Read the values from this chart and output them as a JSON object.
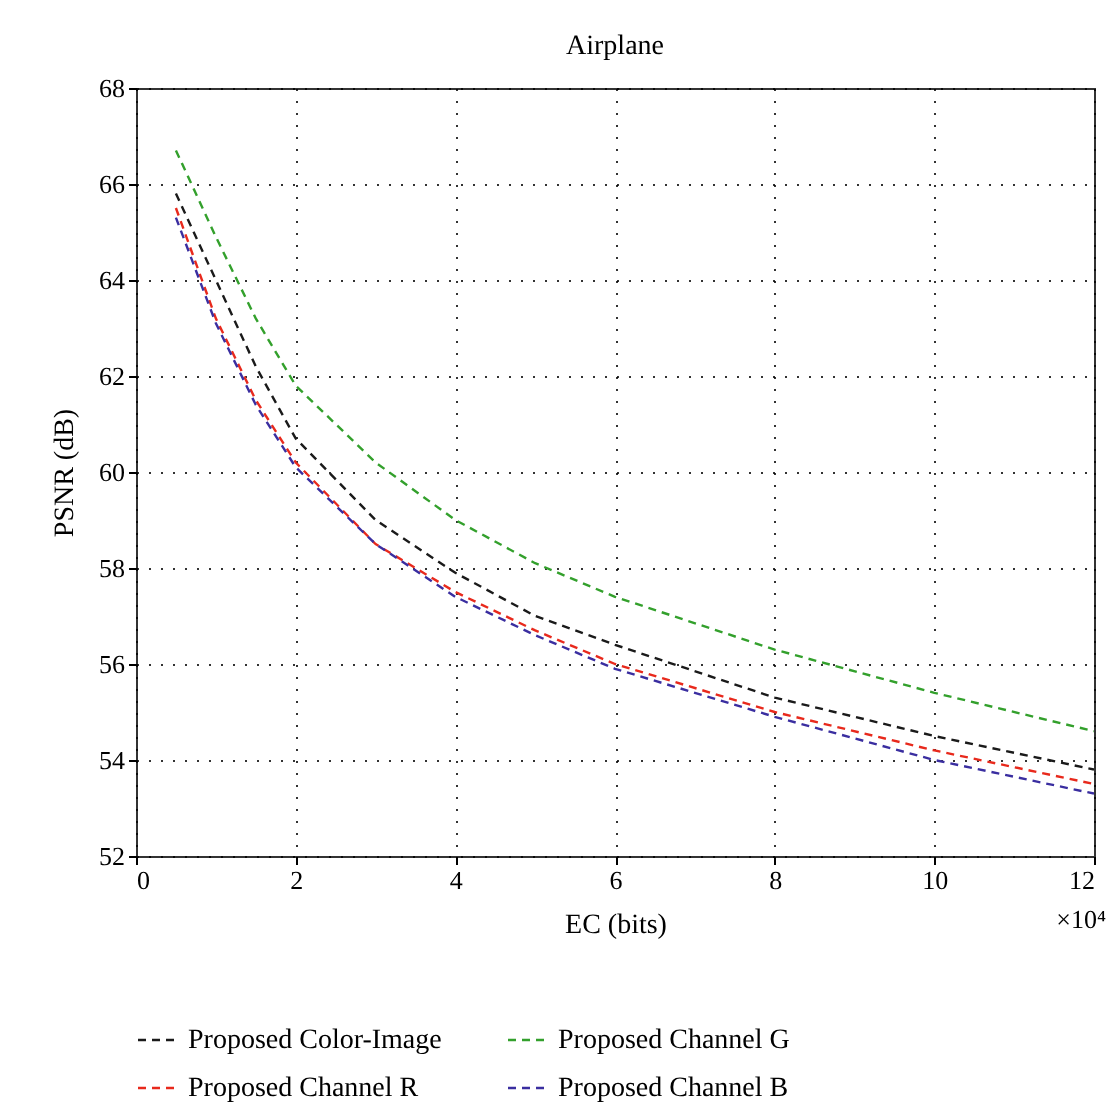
{
  "chart_data": {
    "type": "line",
    "title": "Airplane",
    "xlabel": "EC (bits)",
    "ylabel": "PSNR (dB)",
    "x": [
      0.5,
      1,
      1.5,
      2,
      3,
      4,
      5,
      6,
      8,
      10,
      12
    ],
    "series": [
      {
        "name": "Proposed Color-Image",
        "color": "#1a1a1a",
        "values": [
          65.8,
          64.0,
          62.2,
          60.7,
          59.0,
          57.9,
          57.0,
          56.4,
          55.3,
          54.5,
          53.8
        ]
      },
      {
        "name": "Proposed Channel G",
        "color": "#33a02c",
        "values": [
          66.7,
          64.9,
          63.2,
          61.8,
          60.2,
          59.0,
          58.1,
          57.4,
          56.3,
          55.4,
          54.6
        ]
      },
      {
        "name": "Proposed Channel R",
        "color": "#e8291c",
        "values": [
          65.5,
          63.2,
          61.5,
          60.2,
          58.5,
          57.5,
          56.7,
          56.0,
          55.0,
          54.2,
          53.5
        ]
      },
      {
        "name": "Proposed Channel B",
        "color": "#3a2ea0",
        "values": [
          65.3,
          63.1,
          61.4,
          60.1,
          58.5,
          57.4,
          56.6,
          55.9,
          54.9,
          54.0,
          53.3
        ]
      }
    ],
    "xlim": [
      0,
      12
    ],
    "xticks": [
      0,
      2,
      4,
      6,
      8,
      10,
      12
    ],
    "ylim": [
      52,
      68
    ],
    "yticks": [
      52,
      54,
      56,
      58,
      60,
      62,
      64,
      66,
      68
    ],
    "annotations": [
      "×10⁴"
    ],
    "grid": true,
    "legend": "bottom",
    "line_style": "dashed",
    "marker": "none"
  }
}
